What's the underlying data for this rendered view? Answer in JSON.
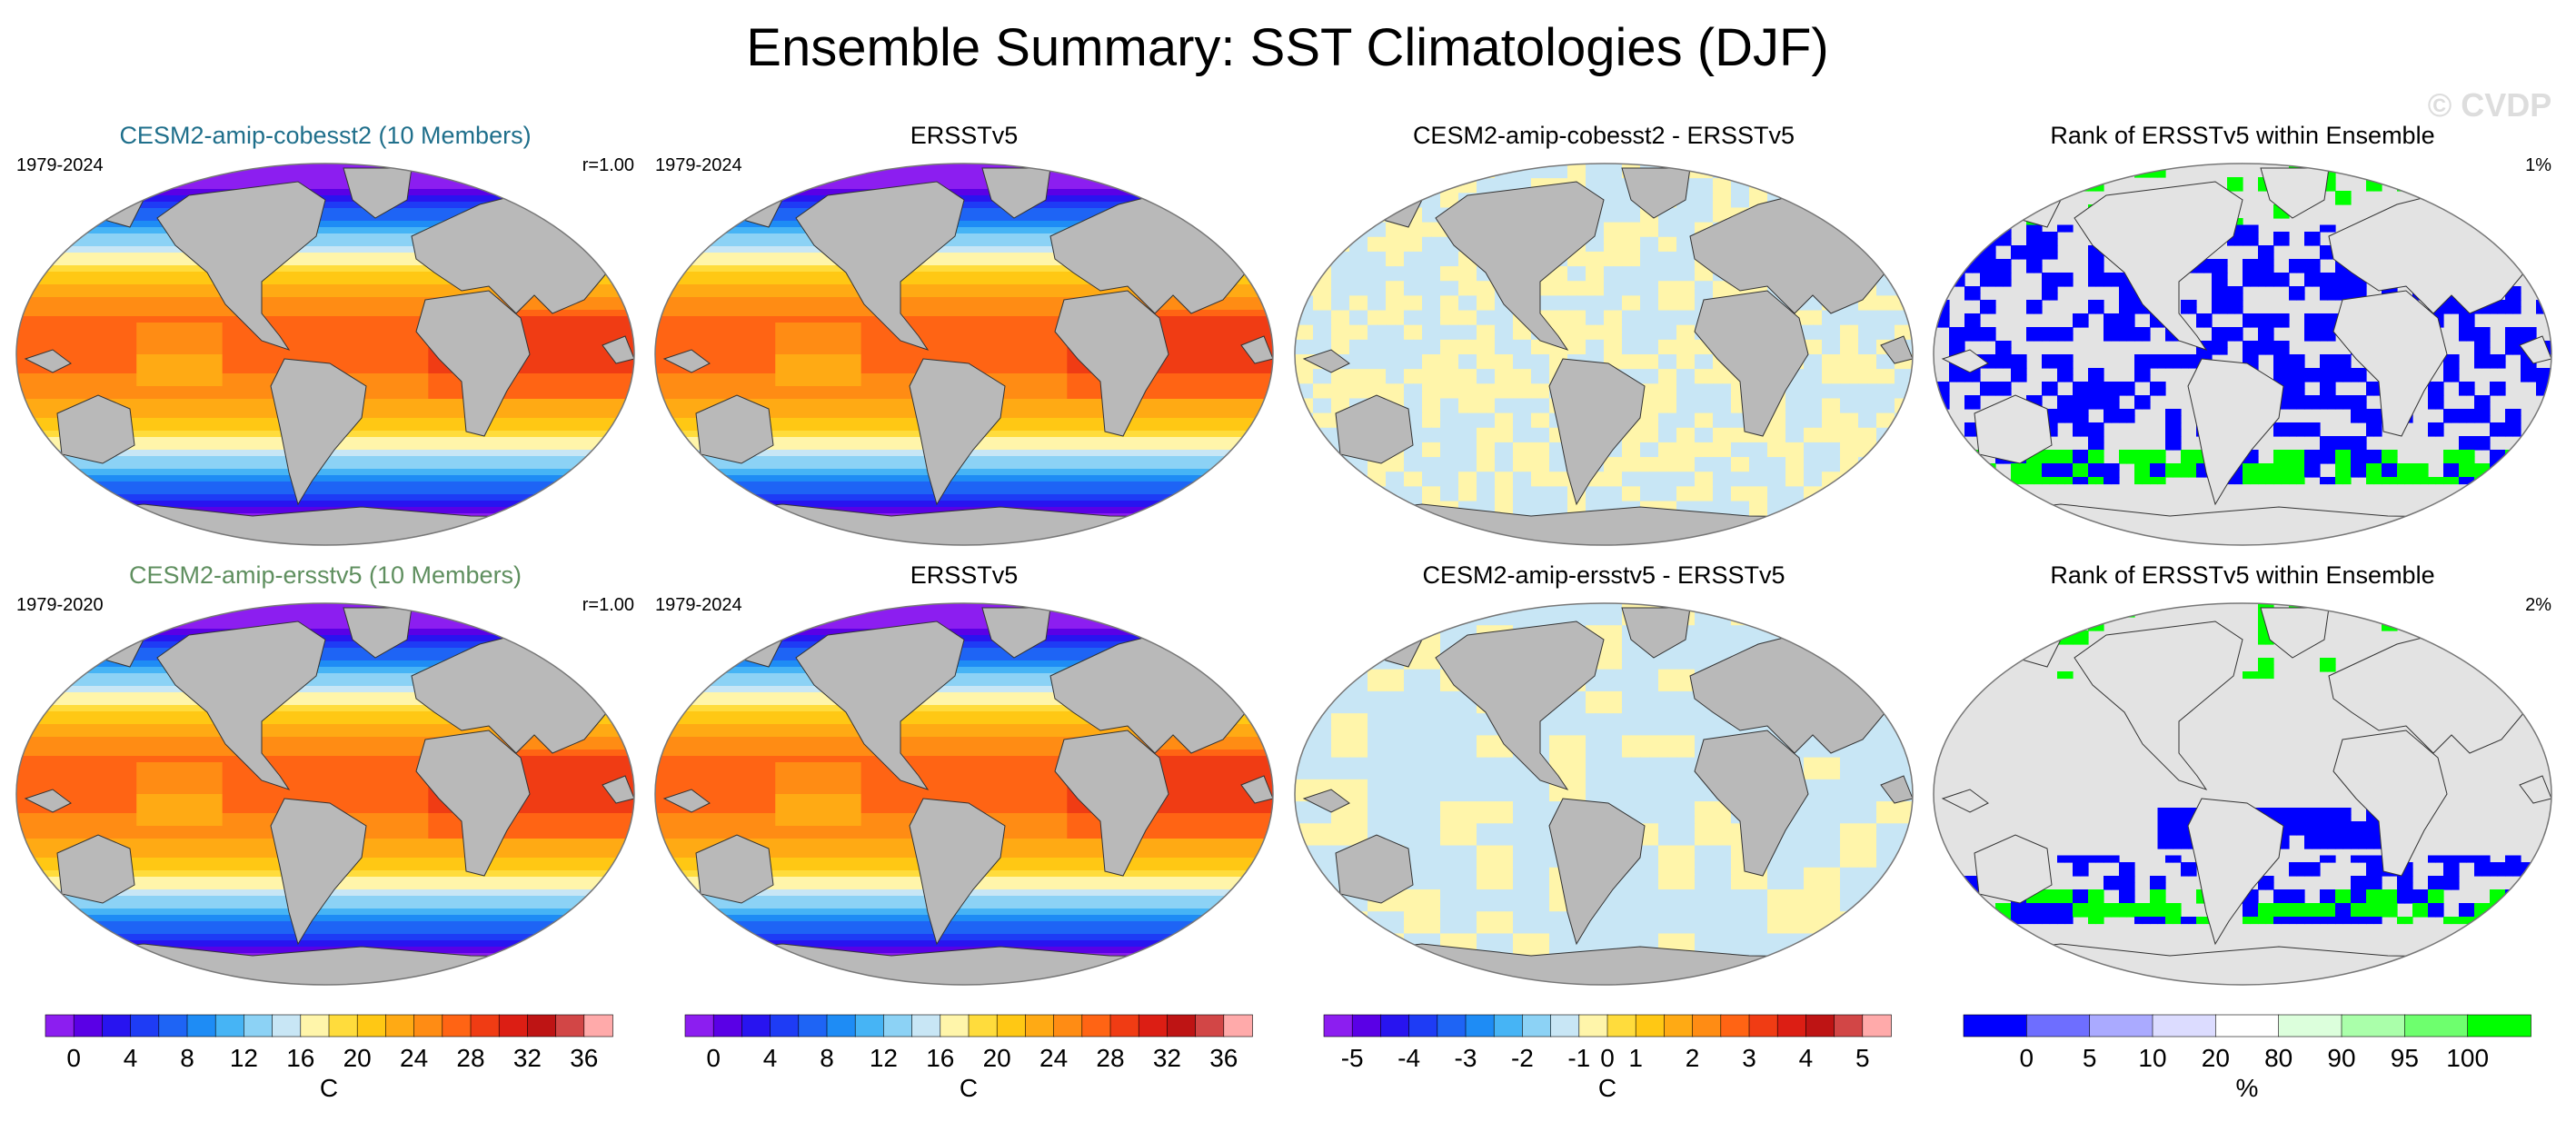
{
  "figure": {
    "title": "Ensemble Summary: SST Climatologies (DJF)",
    "watermark": "© CVDP"
  },
  "colors": {
    "land": "#b9b9b9",
    "rank_land": "#e3e3e3",
    "title_row1": "#1f6f8b",
    "title_row2": "#5f8f5f",
    "coast": "#333333"
  },
  "chart_data": [
    {
      "type": "heatmap",
      "id": "p1",
      "field": "abs",
      "title": "CESM2-amip-cobesst2 (10 Members)",
      "left_label": "1979-2024",
      "right_label": "r=1.00",
      "title_color": "row1"
    },
    {
      "type": "heatmap",
      "id": "p2",
      "field": "abs",
      "title": "ERSSTv5",
      "left_label": "1979-2024",
      "right_label": "",
      "title_color": "black"
    },
    {
      "type": "heatmap",
      "id": "p3",
      "field": "diff1",
      "title": "CESM2-amip-cobesst2 - ERSSTv5",
      "left_label": "",
      "right_label": "",
      "title_color": "black"
    },
    {
      "type": "heatmap",
      "id": "p4",
      "field": "rank1",
      "title": "Rank of ERSSTv5 within Ensemble",
      "left_label": "",
      "right_label": "1%",
      "title_color": "black"
    },
    {
      "type": "heatmap",
      "id": "p5",
      "field": "abs",
      "title": "CESM2-amip-ersstv5 (10 Members)",
      "left_label": "1979-2020",
      "right_label": "r=1.00",
      "title_color": "row2"
    },
    {
      "type": "heatmap",
      "id": "p6",
      "field": "abs",
      "title": "ERSSTv5",
      "left_label": "1979-2024",
      "right_label": "",
      "title_color": "black"
    },
    {
      "type": "heatmap",
      "id": "p7",
      "field": "diff2",
      "title": "CESM2-amip-ersstv5 - ERSSTv5",
      "left_label": "",
      "right_label": "",
      "title_color": "black"
    },
    {
      "type": "heatmap",
      "id": "p8",
      "field": "rank2",
      "title": "Rank of ERSSTv5 within Ensemble",
      "left_label": "",
      "right_label": "2%",
      "title_color": "black"
    }
  ],
  "colorbars": [
    {
      "id": "cb1",
      "unit": "C",
      "colors": [
        "#8c1ef0",
        "#5a00e6",
        "#2814f0",
        "#1e3cf5",
        "#1e64f5",
        "#1e8cf5",
        "#46b4f5",
        "#8cd2f5",
        "#c8e6f5",
        "#fff5aa",
        "#ffdc3c",
        "#ffc814",
        "#ffaa14",
        "#ff8c14",
        "#ff6414",
        "#f03c14",
        "#dc1e14",
        "#be1414",
        "#d24646",
        "#ffaaaa"
      ],
      "ticks": [
        "0",
        "4",
        "8",
        "12",
        "16",
        "20",
        "24",
        "28",
        "32",
        "36"
      ],
      "tick_positions": [
        1,
        3,
        5,
        7,
        9,
        11,
        13,
        15,
        17,
        19
      ]
    },
    {
      "id": "cb2",
      "unit": "C",
      "colors": [
        "#8c1ef0",
        "#5a00e6",
        "#2814f0",
        "#1e3cf5",
        "#1e64f5",
        "#1e8cf5",
        "#46b4f5",
        "#8cd2f5",
        "#c8e6f5",
        "#fff5aa",
        "#ffdc3c",
        "#ffc814",
        "#ffaa14",
        "#ff8c14",
        "#ff6414",
        "#f03c14",
        "#dc1e14",
        "#be1414",
        "#d24646",
        "#ffaaaa"
      ],
      "ticks": [
        "0",
        "4",
        "8",
        "12",
        "16",
        "20",
        "24",
        "28",
        "32",
        "36"
      ],
      "tick_positions": [
        1,
        3,
        5,
        7,
        9,
        11,
        13,
        15,
        17,
        19
      ]
    },
    {
      "id": "cb3",
      "unit": "C",
      "colors": [
        "#8c1ef0",
        "#5a00e6",
        "#2814f0",
        "#1e3cf5",
        "#1e64f5",
        "#1e8cf5",
        "#46b4f5",
        "#8cd2f5",
        "#c8e6f5",
        "#fff5aa",
        "#ffdc3c",
        "#ffc814",
        "#ffaa14",
        "#ff8c14",
        "#ff6414",
        "#f03c14",
        "#dc1e14",
        "#be1414",
        "#d24646",
        "#ffaaaa"
      ],
      "ticks": [
        "-5",
        "-4",
        "-3",
        "-2",
        "-1",
        "0",
        "1",
        "2",
        "3",
        "4",
        "5"
      ],
      "tick_positions": [
        1,
        3,
        5,
        7,
        9,
        10,
        11,
        13,
        15,
        17,
        19
      ]
    },
    {
      "id": "cb4",
      "unit": "%",
      "colors": [
        "#0000ff",
        "#6e6eff",
        "#aaaaff",
        "#dcdcff",
        "#ffffff",
        "#dcffdc",
        "#aaffaa",
        "#6eff6e",
        "#00ff00"
      ],
      "ticks": [
        "0",
        "5",
        "10",
        "20",
        "80",
        "90",
        "95",
        "100"
      ],
      "tick_positions": [
        1,
        2,
        3,
        4,
        5,
        6,
        7,
        8
      ]
    }
  ]
}
